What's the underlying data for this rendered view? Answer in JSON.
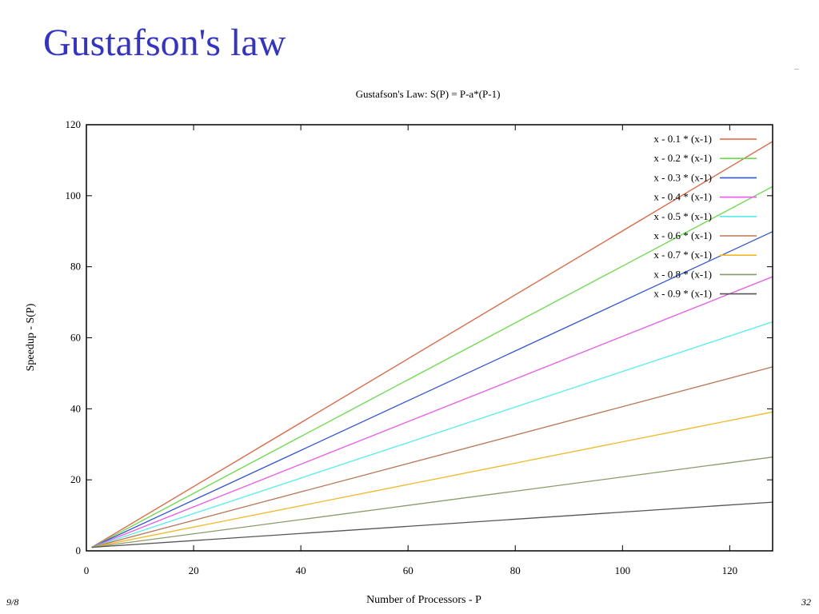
{
  "slide": {
    "title": "Gustafson's law",
    "footer_left": "9/8",
    "page_number": "32"
  },
  "chart_data": {
    "type": "line",
    "title": "Gustafson's Law: S(P) = P-a*(P-1)",
    "xlabel": "Number of Processors - P",
    "ylabel": "Speedup - S(P)",
    "xlim": [
      0,
      128
    ],
    "ylim": [
      0,
      120
    ],
    "xticks": [
      0,
      20,
      40,
      60,
      80,
      100,
      120
    ],
    "yticks": [
      0,
      20,
      40,
      60,
      80,
      100,
      120
    ],
    "grid": false,
    "legend_position": "top-right",
    "series": [
      {
        "name": "x - 0.1 * (x-1)",
        "color": "#e8603c",
        "x": [
          1,
          128
        ],
        "y": [
          1,
          115.3
        ]
      },
      {
        "name": "x - 0.2 * (x-1)",
        "color": "#66dd44",
        "x": [
          1,
          128
        ],
        "y": [
          1,
          102.6
        ]
      },
      {
        "name": "x - 0.3 * (x-1)",
        "color": "#3355dd",
        "x": [
          1,
          128
        ],
        "y": [
          1,
          89.9
        ]
      },
      {
        "name": "x - 0.4 * (x-1)",
        "color": "#ee55ee",
        "x": [
          1,
          128
        ],
        "y": [
          1,
          77.2
        ]
      },
      {
        "name": "x - 0.5 * (x-1)",
        "color": "#55eeee",
        "x": [
          1,
          128
        ],
        "y": [
          1,
          64.5
        ]
      },
      {
        "name": "x - 0.6 * (x-1)",
        "color": "#bb7755",
        "x": [
          1,
          128
        ],
        "y": [
          1,
          51.8
        ]
      },
      {
        "name": "x - 0.7 * (x-1)",
        "color": "#f2b822",
        "x": [
          1,
          128
        ],
        "y": [
          1,
          39.1
        ]
      },
      {
        "name": "x - 0.8 * (x-1)",
        "color": "#8a9a6a",
        "x": [
          1,
          128
        ],
        "y": [
          1,
          26.4
        ]
      },
      {
        "name": "x - 0.9 * (x-1)",
        "color": "#555555",
        "x": [
          1,
          128
        ],
        "y": [
          1,
          13.7
        ]
      }
    ]
  }
}
